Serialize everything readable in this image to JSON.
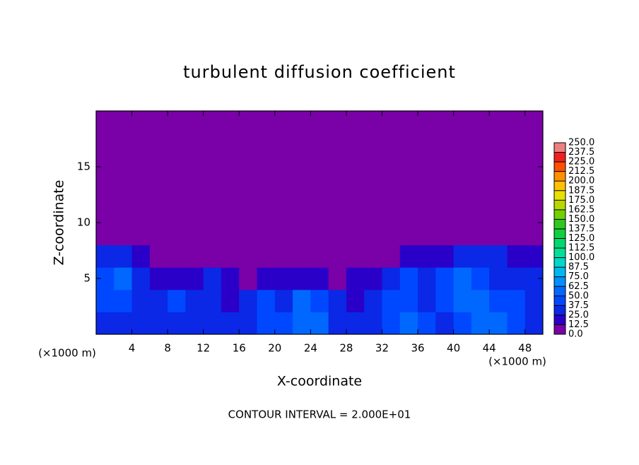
{
  "chart_data": {
    "type": "heatmap",
    "title": "turbulent diffusion coefficient",
    "x_label": "X-coordinate",
    "y_label": "Z-coordinate",
    "x_unit_label": "(×1000 m)",
    "y_unit_label": "(×1000 m)",
    "annotation": "CONTOUR INTERVAL = 2.000E+01",
    "xlim": [
      0,
      50
    ],
    "ylim": [
      0,
      20
    ],
    "xticks": [
      4,
      8,
      12,
      16,
      20,
      24,
      28,
      32,
      36,
      40,
      44,
      48
    ],
    "yticks": [
      5,
      10,
      15
    ],
    "x": [
      1,
      3,
      5,
      7,
      9,
      11,
      13,
      15,
      17,
      19,
      21,
      23,
      25,
      27,
      29,
      31,
      33,
      35,
      37,
      39,
      41,
      43,
      45,
      47,
      49
    ],
    "y": [
      1,
      3,
      5,
      7,
      9,
      11,
      13,
      15,
      17,
      19
    ],
    "z": [
      [
        30,
        35,
        30,
        25,
        30,
        35,
        30,
        25,
        30,
        45,
        40,
        60,
        55,
        30,
        25,
        30,
        40,
        50,
        45,
        35,
        40,
        55,
        50,
        45,
        35
      ],
      [
        40,
        45,
        30,
        35,
        40,
        35,
        30,
        20,
        25,
        40,
        35,
        60,
        40,
        25,
        20,
        30,
        45,
        40,
        35,
        45,
        60,
        55,
        45,
        40,
        30
      ],
      [
        45,
        50,
        35,
        20,
        15,
        20,
        25,
        15,
        10,
        20,
        15,
        20,
        15,
        10,
        15,
        20,
        30,
        45,
        30,
        40,
        50,
        45,
        35,
        30,
        25
      ],
      [
        25,
        30,
        20,
        5,
        0,
        0,
        5,
        0,
        0,
        5,
        0,
        0,
        0,
        0,
        0,
        0,
        5,
        20,
        15,
        20,
        25,
        30,
        25,
        20,
        15
      ],
      [
        5,
        0,
        0,
        0,
        0,
        0,
        0,
        0,
        0,
        0,
        0,
        0,
        0,
        0,
        0,
        0,
        0,
        0,
        0,
        0,
        0,
        0,
        0,
        5,
        0
      ],
      [
        0,
        0,
        0,
        0,
        0,
        0,
        0,
        0,
        0,
        0,
        0,
        0,
        0,
        0,
        0,
        0,
        0,
        0,
        0,
        0,
        0,
        0,
        0,
        0,
        0
      ],
      [
        0,
        0,
        0,
        0,
        0,
        0,
        0,
        0,
        0,
        0,
        0,
        0,
        0,
        0,
        0,
        0,
        0,
        0,
        0,
        0,
        0,
        0,
        0,
        0,
        0
      ],
      [
        0,
        0,
        0,
        0,
        0,
        0,
        0,
        0,
        0,
        0,
        0,
        0,
        0,
        0,
        0,
        0,
        0,
        0,
        0,
        0,
        0,
        0,
        0,
        0,
        0
      ],
      [
        0,
        0,
        0,
        0,
        0,
        0,
        0,
        0,
        0,
        0,
        0,
        0,
        0,
        0,
        0,
        0,
        0,
        0,
        0,
        0,
        0,
        0,
        0,
        0,
        0
      ],
      [
        0,
        0,
        0,
        0,
        0,
        0,
        0,
        0,
        0,
        0,
        0,
        0,
        0,
        0,
        0,
        0,
        0,
        0,
        0,
        0,
        0,
        0,
        0,
        0,
        0
      ]
    ],
    "levels": [
      {
        "value": 0,
        "label": "0.0"
      },
      12.5,
      {
        "value": 25,
        "label": "25.0"
      },
      37.5,
      {
        "value": 50,
        "label": "50.0"
      },
      62.5,
      {
        "value": 75,
        "label": "75.0"
      },
      87.5,
      {
        "value": 100,
        "label": "100.0"
      },
      112.5,
      {
        "value": 125,
        "label": "125.0"
      },
      137.5,
      {
        "value": 150,
        "label": "150.0"
      },
      162.5,
      {
        "value": 175,
        "label": "175.0"
      },
      187.5,
      {
        "value": 200,
        "label": "200.0"
      },
      212.5,
      {
        "value": 225,
        "label": "225.0"
      },
      237.5,
      {
        "value": 250,
        "label": "250.0"
      }
    ],
    "colors": [
      "#7a00a8",
      "#2a00c8",
      "#0a28e6",
      "#0048ff",
      "#0068ff",
      "#0090ff",
      "#00b8f0",
      "#00d8c8",
      "#00e098",
      "#00d870",
      "#10d040",
      "#30c820",
      "#70d000",
      "#b8d800",
      "#e8e000",
      "#ffc000",
      "#ff9000",
      "#ff5000",
      "#f02020",
      "#f08080"
    ]
  }
}
